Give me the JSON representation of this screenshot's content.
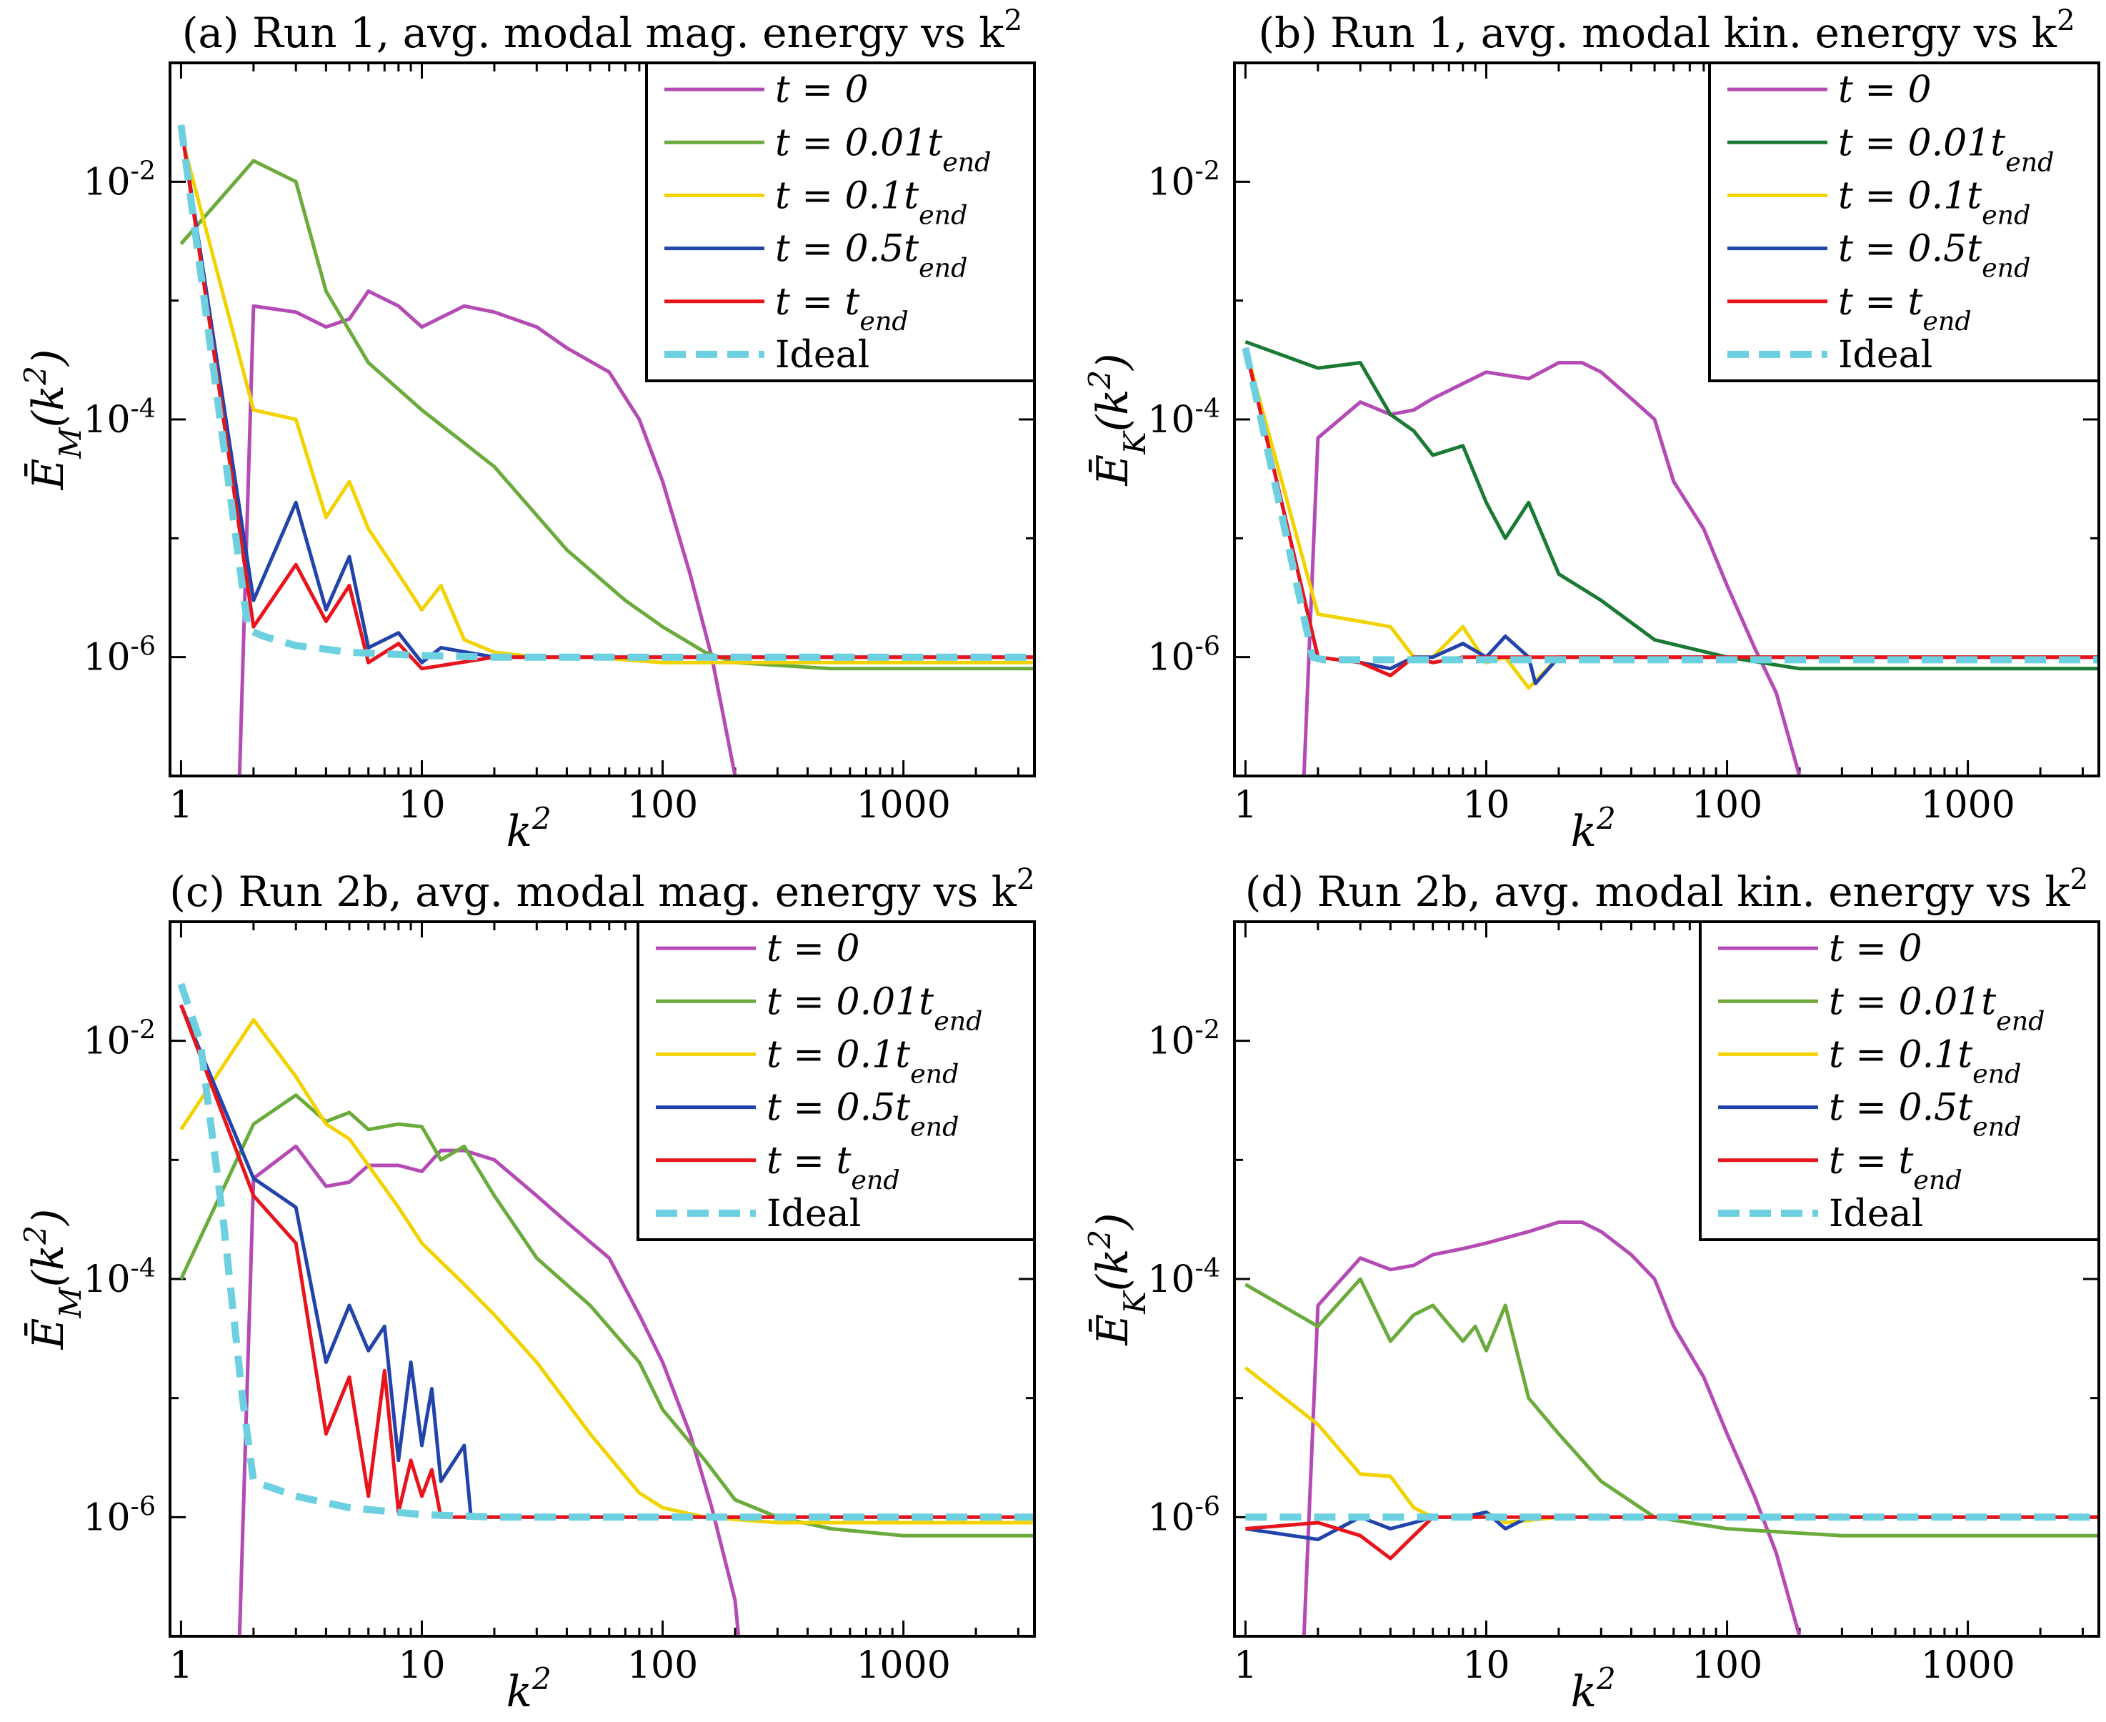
{
  "colors": {
    "t0": "#b44bb4",
    "t001": "#6aab3c",
    "t001_dark": "#1a7a34",
    "t01": "#f2d200",
    "t05": "#2244aa",
    "tend": "#e8141c",
    "ideal": "#6cd0e0"
  },
  "legend_labels": [
    "t = 0",
    "t = 0.01t_end",
    "t = 0.1t_end",
    "t = 0.5t_end",
    "t = t_end",
    "Ideal"
  ],
  "chart_data": [
    {
      "panel": "a",
      "type": "line",
      "title": "(a) Run 1, avg. modal mag. energy vs k²",
      "xlabel": "k²",
      "ylabel": "Ē_M(k²)",
      "xscale": "log",
      "yscale": "log",
      "xlim": [
        0.9,
        3500
      ],
      "ylim": [
        1e-07,
        0.1
      ],
      "xticks": [
        1,
        10,
        100,
        1000
      ],
      "xticklabels": [
        "1",
        "10",
        "100",
        "1000"
      ],
      "yticks": [
        1e-06,
        0.0001,
        0.01
      ],
      "yticklabels": [
        "10^-6",
        "10^-4",
        "10^-2"
      ],
      "legend_loc": "top-right",
      "series": [
        {
          "name": "t = 0",
          "color": "t0",
          "dash": false,
          "x": [
            1.75,
            2,
            3,
            4,
            5,
            6,
            8,
            10,
            15,
            20,
            30,
            40,
            60,
            80,
            100,
            130,
            160,
            200,
            230
          ],
          "y": [
            1e-07,
            0.0009,
            0.0008,
            0.0006,
            0.0007,
            0.0012,
            0.0009,
            0.0006,
            0.0009,
            0.0008,
            0.0006,
            0.0004,
            0.00025,
            0.0001,
            3e-05,
            5e-06,
            1e-06,
            1e-07,
            1e-08
          ]
        },
        {
          "name": "t = 0.01t_end",
          "color": "t001",
          "dash": false,
          "x": [
            1,
            2,
            3,
            4,
            6,
            10,
            20,
            40,
            70,
            100,
            150,
            200,
            500,
            1000,
            3500
          ],
          "y": [
            0.003,
            0.015,
            0.01,
            0.0012,
            0.0003,
            0.00012,
            4e-05,
            8e-06,
            3e-06,
            1.8e-06,
            1.1e-06,
            9e-07,
            8e-07,
            8e-07,
            8e-07
          ]
        },
        {
          "name": "t = 0.1t_end",
          "color": "t01",
          "dash": false,
          "x": [
            1,
            2,
            3,
            4,
            5,
            6,
            8,
            10,
            12,
            15,
            20,
            30,
            50,
            100,
            1000,
            3500
          ],
          "y": [
            0.025,
            0.00012,
            0.0001,
            1.5e-05,
            3e-05,
            1.2e-05,
            5e-06,
            2.5e-06,
            4e-06,
            1.4e-06,
            1.1e-06,
            1e-06,
            1e-06,
            9e-07,
            9e-07,
            9e-07
          ]
        },
        {
          "name": "t = 0.5t_end",
          "color": "t05",
          "dash": false,
          "x": [
            1,
            2,
            3,
            4,
            5,
            6,
            8,
            10,
            12,
            20,
            100,
            1000,
            3500
          ],
          "y": [
            0.03,
            3e-06,
            2e-05,
            2.5e-06,
            7e-06,
            1.2e-06,
            1.6e-06,
            9e-07,
            1.2e-06,
            1e-06,
            1e-06,
            1e-06,
            1e-06
          ]
        },
        {
          "name": "t = t_end",
          "color": "tend",
          "dash": false,
          "x": [
            1,
            2,
            3,
            4,
            5,
            6,
            8,
            10,
            20,
            100,
            1000,
            3500
          ],
          "y": [
            0.03,
            1.8e-06,
            6e-06,
            2e-06,
            4e-06,
            9e-07,
            1.3e-06,
            8e-07,
            1e-06,
            1e-06,
            1e-06,
            1e-06
          ]
        },
        {
          "name": "Ideal",
          "color": "ideal",
          "dash": true,
          "x": [
            1,
            1.9,
            2.2,
            3,
            5,
            10,
            20,
            100,
            3500
          ],
          "y": [
            0.03,
            1.7e-06,
            1.5e-06,
            1.25e-06,
            1.1e-06,
            1.03e-06,
            1e-06,
            1e-06,
            1e-06
          ]
        }
      ]
    },
    {
      "panel": "b",
      "type": "line",
      "title": "(b) Run 1, avg. modal kin. energy vs k²",
      "xlabel": "k²",
      "ylabel": "Ē_K(k²)",
      "xscale": "log",
      "yscale": "log",
      "xlim": [
        0.9,
        3500
      ],
      "ylim": [
        1e-07,
        0.1
      ],
      "xticks": [
        1,
        10,
        100,
        1000
      ],
      "xticklabels": [
        "1",
        "10",
        "100",
        "1000"
      ],
      "yticks": [
        1e-06,
        0.0001,
        0.01
      ],
      "yticklabels": [
        "10^-6",
        "10^-4",
        "10^-2"
      ],
      "legend_loc": "top-right",
      "series": [
        {
          "name": "t = 0",
          "color": "t0",
          "dash": false,
          "x": [
            1.75,
            2,
            3,
            4,
            5,
            6,
            8,
            10,
            15,
            20,
            25,
            30,
            40,
            50,
            60,
            80,
            100,
            130,
            160,
            200,
            230
          ],
          "y": [
            1e-07,
            7e-05,
            0.00014,
            0.00011,
            0.00012,
            0.00015,
            0.0002,
            0.00025,
            0.00022,
            0.0003,
            0.0003,
            0.00025,
            0.00015,
            0.0001,
            3e-05,
            1.2e-05,
            4e-06,
            1.2e-06,
            5e-07,
            1e-07,
            1e-08
          ]
        },
        {
          "name": "t = 0.01t_end",
          "color": "t001_dark",
          "dash": false,
          "x": [
            1,
            2,
            3,
            4,
            5,
            6,
            8,
            10,
            12,
            15,
            20,
            30,
            50,
            100,
            200,
            500,
            1000,
            3500
          ],
          "y": [
            0.00045,
            0.00027,
            0.0003,
            0.00011,
            8e-05,
            5e-05,
            6e-05,
            2e-05,
            1e-05,
            2e-05,
            5e-06,
            3e-06,
            1.4e-06,
            1e-06,
            8e-07,
            8e-07,
            8e-07,
            8e-07
          ]
        },
        {
          "name": "t = 0.1t_end",
          "color": "t01",
          "dash": false,
          "x": [
            1,
            2,
            3,
            4,
            5,
            6,
            8,
            10,
            12,
            15,
            20,
            100,
            1000,
            3500
          ],
          "y": [
            0.0004,
            2.3e-06,
            2e-06,
            1.8e-06,
            1e-06,
            1e-06,
            1.8e-06,
            9e-07,
            1e-06,
            5.5e-07,
            1e-06,
            1e-06,
            1e-06,
            1e-06
          ]
        },
        {
          "name": "t = 0.5t_end",
          "color": "t05",
          "dash": false,
          "x": [
            1,
            2,
            3,
            4,
            5,
            6,
            8,
            10,
            12,
            15,
            16,
            20,
            100,
            1000,
            3500
          ],
          "y": [
            0.0004,
            1e-06,
            9e-07,
            8e-07,
            1e-06,
            1e-06,
            1.3e-06,
            1e-06,
            1.5e-06,
            1e-06,
            6e-07,
            1e-06,
            1e-06,
            1e-06,
            1e-06
          ]
        },
        {
          "name": "t = t_end",
          "color": "tend",
          "dash": false,
          "x": [
            1,
            2,
            3,
            4,
            5,
            6,
            8,
            10,
            100,
            1000,
            3500
          ],
          "y": [
            0.0004,
            1e-06,
            9e-07,
            7e-07,
            1e-06,
            9e-07,
            1e-06,
            1e-06,
            1e-06,
            1e-06,
            1e-06
          ]
        },
        {
          "name": "Ideal",
          "color": "ideal",
          "dash": true,
          "x": [
            1,
            1.9,
            2.1,
            3500
          ],
          "y": [
            0.0004,
            1e-06,
            9.5e-07,
            9.5e-07
          ]
        }
      ]
    },
    {
      "panel": "c",
      "type": "line",
      "title": "(c) Run 2b, avg. modal mag. energy vs k²",
      "xlabel": "k²",
      "ylabel": "Ē_M(k²)",
      "xscale": "log",
      "yscale": "log",
      "xlim": [
        0.9,
        3500
      ],
      "ylim": [
        1e-07,
        0.1
      ],
      "xticks": [
        1,
        10,
        100,
        1000
      ],
      "xticklabels": [
        "1",
        "10",
        "100",
        "1000"
      ],
      "yticks": [
        1e-06,
        0.0001,
        0.01
      ],
      "yticklabels": [
        "10^-6",
        "10^-4",
        "10^-2"
      ],
      "legend_loc": "top-right",
      "series": [
        {
          "name": "t = 0",
          "color": "t0",
          "dash": false,
          "x": [
            1.75,
            2,
            3,
            4,
            5,
            6,
            8,
            10,
            12,
            15,
            20,
            30,
            40,
            60,
            80,
            100,
            130,
            160,
            200,
            230
          ],
          "y": [
            1e-07,
            0.0007,
            0.0013,
            0.0006,
            0.00065,
            0.0009,
            0.0009,
            0.0008,
            0.0012,
            0.0012,
            0.001,
            0.0005,
            0.0003,
            0.00015,
            5e-05,
            2e-05,
            5e-06,
            1.2e-06,
            2e-07,
            1e-08
          ]
        },
        {
          "name": "t = 0.01t_end",
          "color": "t001",
          "dash": false,
          "x": [
            1,
            2,
            3,
            4,
            5,
            6,
            8,
            10,
            12,
            15,
            20,
            30,
            50,
            80,
            100,
            150,
            200,
            300,
            500,
            1000,
            3500
          ],
          "y": [
            0.0001,
            0.002,
            0.0035,
            0.0021,
            0.0025,
            0.0018,
            0.002,
            0.0019,
            0.001,
            0.0013,
            0.0005,
            0.00015,
            6e-05,
            2e-05,
            8e-06,
            3e-06,
            1.4e-06,
            1e-06,
            8e-07,
            7e-07,
            7e-07
          ]
        },
        {
          "name": "t = 0.1t_end",
          "color": "t01",
          "dash": false,
          "x": [
            1,
            2,
            3,
            4,
            5,
            6,
            8,
            10,
            15,
            20,
            30,
            50,
            80,
            100,
            150,
            300,
            1000,
            3500
          ],
          "y": [
            0.0018,
            0.015,
            0.005,
            0.002,
            0.0015,
            0.0009,
            0.0004,
            0.0002,
            9e-05,
            5e-05,
            2e-05,
            5e-06,
            1.6e-06,
            1.2e-06,
            1e-06,
            9e-07,
            9e-07,
            9e-07
          ]
        },
        {
          "name": "t = 0.5t_end",
          "color": "t05",
          "dash": false,
          "x": [
            1,
            2,
            3,
            4,
            5,
            6,
            7,
            8,
            9,
            10,
            11,
            12,
            15,
            16,
            20,
            30,
            100,
            1000,
            3500
          ],
          "y": [
            0.02,
            0.0007,
            0.0004,
            2e-05,
            6e-05,
            2.5e-05,
            4e-05,
            3e-06,
            2e-05,
            4e-06,
            1.2e-05,
            2e-06,
            4e-06,
            1e-06,
            1e-06,
            1e-06,
            1e-06,
            1e-06,
            1e-06
          ]
        },
        {
          "name": "t = t_end",
          "color": "tend",
          "dash": false,
          "x": [
            1,
            2,
            3,
            4,
            5,
            6,
            7,
            8,
            9,
            10,
            11,
            12,
            15,
            20,
            100,
            1000,
            3500
          ],
          "y": [
            0.02,
            0.0005,
            0.0002,
            5e-06,
            1.5e-05,
            1.5e-06,
            1.7e-05,
            1.1e-06,
            3e-06,
            1.5e-06,
            2.5e-06,
            1e-06,
            1e-06,
            1e-06,
            1e-06,
            1e-06,
            1e-06
          ]
        },
        {
          "name": "Ideal",
          "color": "ideal",
          "dash": true,
          "x": [
            1,
            1.2,
            1.5,
            1.8,
            2,
            3,
            5,
            10,
            20,
            3500
          ],
          "y": [
            0.03,
            0.01,
            0.0003,
            1e-05,
            2e-06,
            1.5e-06,
            1.2e-06,
            1.05e-06,
            1e-06,
            1e-06
          ]
        }
      ]
    },
    {
      "panel": "d",
      "type": "line",
      "title": "(d) Run 2b, avg. modal kin. energy vs k²",
      "xlabel": "k²",
      "ylabel": "Ē_K(k²)",
      "xscale": "log",
      "yscale": "log",
      "xlim": [
        0.9,
        3500
      ],
      "ylim": [
        1e-07,
        0.1
      ],
      "xticks": [
        1,
        10,
        100,
        1000
      ],
      "xticklabels": [
        "1",
        "10",
        "100",
        "1000"
      ],
      "yticks": [
        1e-06,
        0.0001,
        0.01
      ],
      "yticklabels": [
        "10^-6",
        "10^-4",
        "10^-2"
      ],
      "legend_loc": "top-right",
      "series": [
        {
          "name": "t = 0",
          "color": "t0",
          "dash": false,
          "x": [
            1.75,
            2,
            3,
            4,
            5,
            6,
            8,
            10,
            15,
            20,
            25,
            30,
            40,
            50,
            60,
            80,
            100,
            130,
            160,
            200,
            230
          ],
          "y": [
            1e-07,
            6e-05,
            0.00015,
            0.00012,
            0.00013,
            0.00016,
            0.00018,
            0.0002,
            0.00025,
            0.0003,
            0.0003,
            0.00025,
            0.00016,
            0.0001,
            4e-05,
            1.5e-05,
            5e-06,
            1.5e-06,
            5e-07,
            1e-07,
            1e-08
          ]
        },
        {
          "name": "t = 0.01t_end",
          "color": "t001",
          "dash": false,
          "x": [
            1,
            2,
            3,
            4,
            5,
            6,
            8,
            9,
            10,
            12,
            15,
            20,
            30,
            50,
            100,
            300,
            1000,
            3500
          ],
          "y": [
            9e-05,
            4e-05,
            0.0001,
            3e-05,
            5e-05,
            6e-05,
            3e-05,
            4e-05,
            2.5e-05,
            6e-05,
            1e-05,
            5e-06,
            2e-06,
            1e-06,
            8e-07,
            7e-07,
            7e-07,
            7e-07
          ]
        },
        {
          "name": "t = 0.1t_end",
          "color": "t01",
          "dash": false,
          "x": [
            1,
            2,
            3,
            4,
            5,
            6,
            8,
            10,
            12,
            20,
            100,
            1000,
            3500
          ],
          "y": [
            1.8e-05,
            6e-06,
            2.3e-06,
            2.2e-06,
            1.2e-06,
            1e-06,
            1e-06,
            1.1e-06,
            9e-07,
            1e-06,
            1e-06,
            1e-06,
            1e-06
          ]
        },
        {
          "name": "t = 0.5t_end",
          "color": "t05",
          "dash": false,
          "x": [
            1,
            2,
            3,
            4,
            5,
            6,
            8,
            10,
            12,
            15,
            20,
            100,
            1000,
            3500
          ],
          "y": [
            8e-07,
            6.5e-07,
            1e-06,
            8e-07,
            9e-07,
            1e-06,
            1e-06,
            1.1e-06,
            8e-07,
            1e-06,
            1e-06,
            1e-06,
            1e-06,
            1e-06
          ]
        },
        {
          "name": "t = t_end",
          "color": "tend",
          "dash": false,
          "x": [
            1,
            2,
            3,
            4,
            5,
            6,
            8,
            10,
            12,
            20,
            100,
            1000,
            3500
          ],
          "y": [
            8e-07,
            9e-07,
            7e-07,
            4.5e-07,
            7e-07,
            1e-06,
            1e-06,
            1e-06,
            1e-06,
            1e-06,
            1e-06,
            1e-06,
            1e-06
          ]
        },
        {
          "name": "Ideal",
          "color": "ideal",
          "dash": true,
          "x": [
            1,
            3500
          ],
          "y": [
            1e-06,
            1e-06
          ]
        }
      ]
    }
  ]
}
